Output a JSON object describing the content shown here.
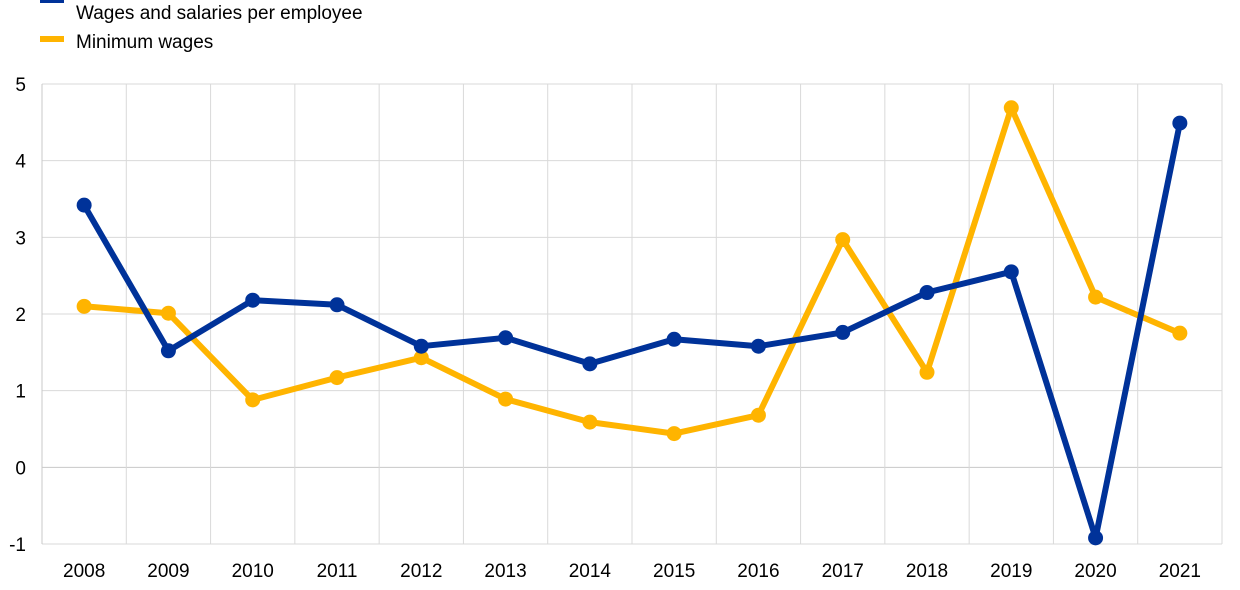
{
  "chart_data": {
    "type": "line",
    "categories": [
      "2008",
      "2009",
      "2010",
      "2011",
      "2012",
      "2013",
      "2014",
      "2015",
      "2016",
      "2017",
      "2018",
      "2019",
      "2020",
      "2021"
    ],
    "series": [
      {
        "name": "Wages and salaries per employee",
        "color": "#003299",
        "values": [
          3.42,
          1.52,
          2.18,
          2.12,
          1.58,
          1.69,
          1.35,
          1.67,
          1.58,
          1.76,
          2.28,
          2.55,
          -0.92,
          4.49
        ]
      },
      {
        "name": "Minimum wages",
        "color": "#FFB400",
        "values": [
          2.1,
          2.01,
          0.88,
          1.17,
          1.43,
          0.89,
          0.59,
          0.44,
          0.68,
          2.97,
          1.24,
          4.69,
          2.22,
          1.75
        ]
      }
    ],
    "yticks": [
      "-1",
      "0",
      "1",
      "2",
      "3",
      "4",
      "5"
    ],
    "ylim": [
      -1,
      5
    ],
    "grid": true,
    "legend_position": "top-left",
    "title": "",
    "xlabel": "",
    "ylabel": ""
  }
}
